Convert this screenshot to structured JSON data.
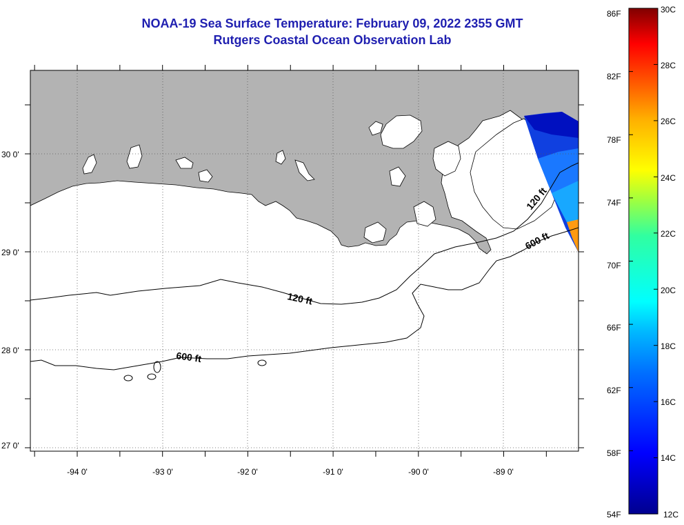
{
  "title": {
    "line1": "NOAA-19 Sea Surface Temperature:  February 09, 2022 2355 GMT",
    "line2": "Rutgers Coastal Ocean Observation Lab"
  },
  "map": {
    "lat_labels": [
      "30 0'",
      "29 0'",
      "28 0'",
      "27 0'"
    ],
    "lon_labels": [
      "-94 0'",
      "-93 0'",
      "-92 0'",
      "-91 0'",
      "-90 0'",
      "-89 0'"
    ],
    "contour_labels": {
      "shelf_120_west": "120 ft",
      "shelf_600_west": "600 ft",
      "shelf_120_east": "120 ft",
      "shelf_600_east": "600 ft"
    },
    "colors": {
      "land": "#b3b3b3",
      "water": "#ffffff",
      "contour": "#000000",
      "grid": "#555555"
    }
  },
  "colorbar": {
    "fahrenheit_labels": [
      "86F",
      "82F",
      "78F",
      "74F",
      "70F",
      "66F",
      "62F",
      "58F",
      "54F"
    ],
    "celsius_labels": [
      "30C",
      "28C",
      "26C",
      "24C",
      "22C",
      "20C",
      "18C",
      "16C",
      "14C",
      "12C"
    ],
    "range_c": [
      12,
      30
    ],
    "range_f": [
      54,
      86
    ]
  }
}
